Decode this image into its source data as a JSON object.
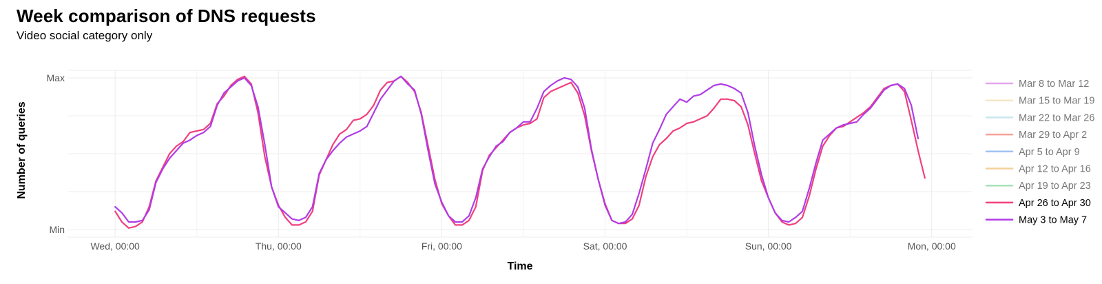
{
  "header": {
    "title": "Week comparison of DNS requests",
    "subtitle": "Video social category only"
  },
  "chart_data": {
    "type": "line",
    "title": "Week comparison of DNS requests",
    "subtitle": "Video social category only",
    "xlabel": "Time",
    "ylabel": "Number of queries",
    "y_ticks": [
      "Min",
      "Max"
    ],
    "x_ticks": [
      "Wed, 00:00",
      "Thu, 00:00",
      "Fri, 00:00",
      "Sat, 00:00",
      "Sun, 00:00",
      "Mon, 00:00"
    ],
    "x_tick_values": [
      0,
      24,
      48,
      72,
      96,
      120
    ],
    "xlim": [
      -7,
      126
    ],
    "ylim": [
      -0.05,
      1.05
    ],
    "grid": true,
    "legend_position": "right",
    "legend": [
      {
        "name": "Mar 8 to Mar 12",
        "color": "#e2a8ea",
        "muted": true
      },
      {
        "name": "Mar 15 to Mar 19",
        "color": "#f6e6c4",
        "muted": true
      },
      {
        "name": "Mar 22 to Mar 26",
        "color": "#c9e6ef",
        "muted": true
      },
      {
        "name": "Mar 29 to Apr 2",
        "color": "#f6a29a",
        "muted": true
      },
      {
        "name": "Apr 5 to Apr 9",
        "color": "#9ec2f2",
        "muted": true
      },
      {
        "name": "Apr 12 to Apr 16",
        "color": "#f2d29a",
        "muted": true
      },
      {
        "name": "Apr 19 to Apr 23",
        "color": "#a6e2b6",
        "muted": true
      },
      {
        "name": "Apr 26 to Apr 30",
        "color": "#f0407e",
        "muted": false
      },
      {
        "name": "May 3 to May 7",
        "color": "#b03ce6",
        "muted": false
      }
    ],
    "series": [
      {
        "name": "Apr 26 to Apr 30",
        "color": "#f0407e",
        "points": [
          [
            0,
            0.12
          ],
          [
            1,
            0.05
          ],
          [
            2,
            0.01
          ],
          [
            3,
            0.02
          ],
          [
            4,
            0.05
          ],
          [
            5,
            0.15
          ],
          [
            6,
            0.32
          ],
          [
            7,
            0.41
          ],
          [
            8,
            0.5
          ],
          [
            9,
            0.55
          ],
          [
            10,
            0.58
          ],
          [
            11,
            0.64
          ],
          [
            12,
            0.65
          ],
          [
            13,
            0.66
          ],
          [
            14,
            0.7
          ],
          [
            15,
            0.83
          ],
          [
            16,
            0.88
          ],
          [
            17,
            0.95
          ],
          [
            18,
            0.99
          ],
          [
            19,
            1.01
          ],
          [
            20,
            0.96
          ],
          [
            21,
            0.77
          ],
          [
            22,
            0.48
          ],
          [
            23,
            0.28
          ],
          [
            24,
            0.16
          ],
          [
            25,
            0.08
          ],
          [
            26,
            0.03
          ],
          [
            27,
            0.03
          ],
          [
            28,
            0.05
          ],
          [
            29,
            0.12
          ],
          [
            30,
            0.36
          ],
          [
            31,
            0.46
          ],
          [
            32,
            0.56
          ],
          [
            33,
            0.63
          ],
          [
            34,
            0.66
          ],
          [
            35,
            0.72
          ],
          [
            36,
            0.73
          ],
          [
            37,
            0.76
          ],
          [
            38,
            0.82
          ],
          [
            39,
            0.92
          ],
          [
            40,
            0.97
          ],
          [
            41,
            0.98
          ],
          [
            42,
            1.01
          ],
          [
            43,
            0.97
          ],
          [
            44,
            0.91
          ],
          [
            45,
            0.77
          ],
          [
            46,
            0.55
          ],
          [
            47,
            0.33
          ],
          [
            48,
            0.17
          ],
          [
            49,
            0.09
          ],
          [
            50,
            0.03
          ],
          [
            51,
            0.03
          ],
          [
            52,
            0.06
          ],
          [
            53,
            0.15
          ],
          [
            54,
            0.39
          ],
          [
            55,
            0.49
          ],
          [
            56,
            0.54
          ],
          [
            57,
            0.59
          ],
          [
            58,
            0.64
          ],
          [
            59,
            0.67
          ],
          [
            60,
            0.69
          ],
          [
            61,
            0.7
          ],
          [
            62,
            0.73
          ],
          [
            63,
            0.87
          ],
          [
            64,
            0.91
          ],
          [
            65,
            0.93
          ],
          [
            66,
            0.95
          ],
          [
            67,
            0.97
          ],
          [
            68,
            0.9
          ],
          [
            69,
            0.75
          ],
          [
            70,
            0.52
          ],
          [
            71,
            0.33
          ],
          [
            72,
            0.17
          ],
          [
            73,
            0.06
          ],
          [
            74,
            0.04
          ],
          [
            75,
            0.04
          ],
          [
            76,
            0.07
          ],
          [
            77,
            0.16
          ],
          [
            78,
            0.35
          ],
          [
            79,
            0.48
          ],
          [
            80,
            0.56
          ],
          [
            81,
            0.6
          ],
          [
            82,
            0.65
          ],
          [
            83,
            0.67
          ],
          [
            84,
            0.7
          ],
          [
            85,
            0.71
          ],
          [
            86,
            0.73
          ],
          [
            87,
            0.75
          ],
          [
            88,
            0.8
          ],
          [
            89,
            0.86
          ],
          [
            90,
            0.86
          ],
          [
            91,
            0.85
          ],
          [
            92,
            0.81
          ],
          [
            93,
            0.69
          ],
          [
            94,
            0.5
          ],
          [
            95,
            0.32
          ],
          [
            96,
            0.21
          ],
          [
            97,
            0.11
          ],
          [
            98,
            0.05
          ],
          [
            99,
            0.03
          ],
          [
            100,
            0.04
          ],
          [
            101,
            0.08
          ],
          [
            102,
            0.22
          ],
          [
            103,
            0.4
          ],
          [
            104,
            0.55
          ],
          [
            105,
            0.62
          ],
          [
            106,
            0.67
          ],
          [
            107,
            0.68
          ],
          [
            108,
            0.71
          ],
          [
            109,
            0.74
          ],
          [
            110,
            0.77
          ],
          [
            111,
            0.81
          ],
          [
            112,
            0.87
          ],
          [
            113,
            0.93
          ],
          [
            114,
            0.95
          ],
          [
            115,
            0.96
          ],
          [
            116,
            0.91
          ],
          [
            117,
            0.72
          ],
          [
            118,
            0.52
          ],
          [
            119,
            0.34
          ]
        ]
      },
      {
        "name": "May 3 to May 7",
        "color": "#b03ce6",
        "points": [
          [
            0,
            0.15
          ],
          [
            1,
            0.11
          ],
          [
            2,
            0.05
          ],
          [
            3,
            0.05
          ],
          [
            4,
            0.06
          ],
          [
            5,
            0.13
          ],
          [
            6,
            0.31
          ],
          [
            7,
            0.4
          ],
          [
            8,
            0.47
          ],
          [
            9,
            0.52
          ],
          [
            10,
            0.57
          ],
          [
            11,
            0.59
          ],
          [
            12,
            0.62
          ],
          [
            13,
            0.64
          ],
          [
            14,
            0.68
          ],
          [
            15,
            0.82
          ],
          [
            16,
            0.9
          ],
          [
            17,
            0.94
          ],
          [
            18,
            0.98
          ],
          [
            19,
            1.0
          ],
          [
            20,
            0.95
          ],
          [
            21,
            0.81
          ],
          [
            22,
            0.56
          ],
          [
            23,
            0.28
          ],
          [
            24,
            0.15
          ],
          [
            25,
            0.11
          ],
          [
            26,
            0.07
          ],
          [
            27,
            0.06
          ],
          [
            28,
            0.08
          ],
          [
            29,
            0.15
          ],
          [
            30,
            0.37
          ],
          [
            31,
            0.46
          ],
          [
            32,
            0.52
          ],
          [
            33,
            0.57
          ],
          [
            34,
            0.61
          ],
          [
            35,
            0.63
          ],
          [
            36,
            0.65
          ],
          [
            37,
            0.68
          ],
          [
            38,
            0.77
          ],
          [
            39,
            0.86
          ],
          [
            40,
            0.92
          ],
          [
            41,
            0.98
          ],
          [
            42,
            1.01
          ],
          [
            43,
            0.96
          ],
          [
            44,
            0.92
          ],
          [
            45,
            0.76
          ],
          [
            46,
            0.52
          ],
          [
            47,
            0.3
          ],
          [
            48,
            0.18
          ],
          [
            49,
            0.09
          ],
          [
            50,
            0.05
          ],
          [
            51,
            0.05
          ],
          [
            52,
            0.09
          ],
          [
            53,
            0.21
          ],
          [
            54,
            0.4
          ],
          [
            55,
            0.48
          ],
          [
            56,
            0.55
          ],
          [
            57,
            0.58
          ],
          [
            58,
            0.64
          ],
          [
            59,
            0.67
          ],
          [
            60,
            0.71
          ],
          [
            61,
            0.71
          ],
          [
            62,
            0.8
          ],
          [
            63,
            0.91
          ],
          [
            64,
            0.95
          ],
          [
            65,
            0.98
          ],
          [
            66,
            1.0
          ],
          [
            67,
            0.99
          ],
          [
            68,
            0.94
          ],
          [
            69,
            0.8
          ],
          [
            70,
            0.53
          ],
          [
            71,
            0.33
          ],
          [
            72,
            0.16
          ],
          [
            73,
            0.06
          ],
          [
            74,
            0.04
          ],
          [
            75,
            0.05
          ],
          [
            76,
            0.1
          ],
          [
            77,
            0.24
          ],
          [
            78,
            0.4
          ],
          [
            79,
            0.57
          ],
          [
            80,
            0.66
          ],
          [
            81,
            0.76
          ],
          [
            82,
            0.81
          ],
          [
            83,
            0.86
          ],
          [
            84,
            0.84
          ],
          [
            85,
            0.88
          ],
          [
            86,
            0.89
          ],
          [
            87,
            0.92
          ],
          [
            88,
            0.95
          ],
          [
            89,
            0.96
          ],
          [
            90,
            0.95
          ],
          [
            91,
            0.93
          ],
          [
            92,
            0.9
          ],
          [
            93,
            0.77
          ],
          [
            94,
            0.55
          ],
          [
            95,
            0.36
          ],
          [
            96,
            0.21
          ],
          [
            97,
            0.11
          ],
          [
            98,
            0.06
          ],
          [
            99,
            0.05
          ],
          [
            100,
            0.08
          ],
          [
            101,
            0.12
          ],
          [
            102,
            0.27
          ],
          [
            103,
            0.44
          ],
          [
            104,
            0.59
          ],
          [
            105,
            0.63
          ],
          [
            106,
            0.67
          ],
          [
            107,
            0.69
          ],
          [
            108,
            0.7
          ],
          [
            109,
            0.71
          ],
          [
            110,
            0.76
          ],
          [
            111,
            0.8
          ],
          [
            112,
            0.86
          ],
          [
            113,
            0.92
          ],
          [
            114,
            0.95
          ],
          [
            115,
            0.96
          ],
          [
            116,
            0.93
          ],
          [
            117,
            0.82
          ],
          [
            118,
            0.6
          ]
        ]
      }
    ]
  }
}
